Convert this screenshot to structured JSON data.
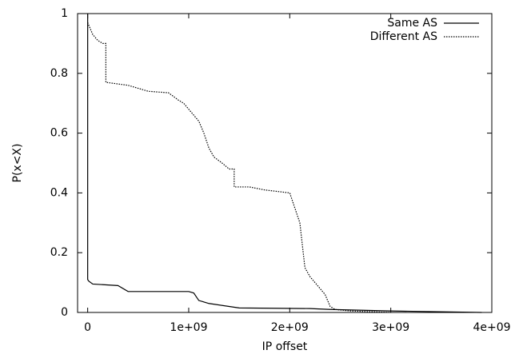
{
  "chart_data": {
    "type": "line",
    "x_label": "IP offset",
    "y_label": "P(x<X)",
    "xlim": [
      -100000000,
      4000000000
    ],
    "xticks": [
      0,
      {
        "value": 1000000000,
        "label": "1e+09"
      },
      {
        "value": 2000000000,
        "label": "2e+09"
      },
      {
        "value": 3000000000,
        "label": "3e+09"
      },
      {
        "value": 4000000000,
        "label": "4e+09"
      }
    ],
    "ylim": [
      0,
      1
    ],
    "yticks": [
      0,
      0.2,
      0.4,
      0.6,
      0.8,
      1
    ],
    "legend": "top-right",
    "series": [
      {
        "name": "Same AS",
        "color": "#000000",
        "dash": "solid",
        "x": [
          0,
          0,
          10000000,
          50000000,
          300000000,
          400000000,
          1000000000,
          1050000000,
          1100000000,
          1200000000,
          1400000000,
          1500000000,
          2200000000,
          2400000000,
          3000000000,
          3900000000
        ],
        "values": [
          1,
          0.11,
          0.105,
          0.095,
          0.09,
          0.07,
          0.07,
          0.065,
          0.04,
          0.03,
          0.02,
          0.015,
          0.013,
          0.01,
          0.005,
          0
        ]
      },
      {
        "name": "Different AS",
        "color": "#000000",
        "dash": "dotted",
        "x": [
          0,
          50000000,
          100000000,
          150000000,
          180000000,
          180000000,
          400000000,
          600000000,
          800000000,
          900000000,
          950000000,
          1000000000,
          1050000000,
          1100000000,
          1150000000,
          1200000000,
          1250000000,
          1330000000,
          1400000000,
          1450000000,
          1450000000,
          1600000000,
          1750000000,
          2000000000,
          2050000000,
          2100000000,
          2150000000,
          2200000000,
          2300000000,
          2350000000,
          2400000000,
          2450000000,
          2600000000,
          3000000000
        ],
        "values": [
          0.97,
          0.93,
          0.91,
          0.9,
          0.9,
          0.77,
          0.76,
          0.74,
          0.735,
          0.71,
          0.7,
          0.68,
          0.66,
          0.64,
          0.6,
          0.55,
          0.52,
          0.5,
          0.48,
          0.48,
          0.42,
          0.42,
          0.41,
          0.4,
          0.35,
          0.3,
          0.15,
          0.12,
          0.08,
          0.06,
          0.02,
          0.01,
          0.005,
          0
        ]
      }
    ]
  }
}
